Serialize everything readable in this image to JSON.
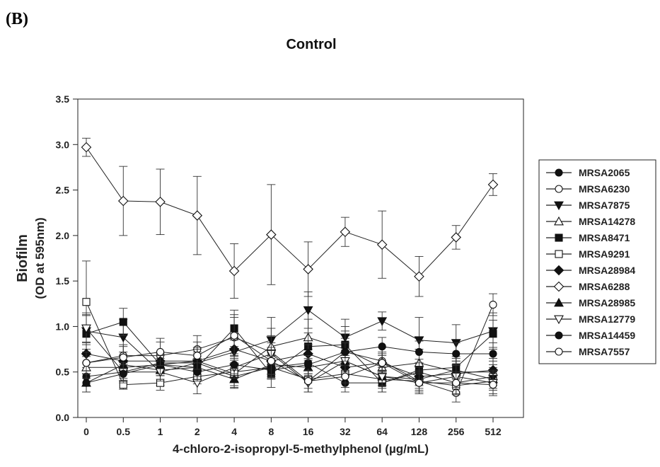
{
  "panel_label": "(B)",
  "chart_data": {
    "type": "line",
    "title": "Control",
    "xlabel": "4-chloro-2-isopropyl-5-methylphenol (µg/mL)",
    "ylabel": "Biofilm",
    "ylabel_sub": "(OD at 595nm)",
    "categories": [
      "0",
      "0.5",
      "1",
      "2",
      "4",
      "8",
      "16",
      "32",
      "64",
      "128",
      "256",
      "512"
    ],
    "ylim": [
      0,
      3.5
    ],
    "yticks": [
      "0.0",
      "0.5",
      "1.0",
      "1.5",
      "2.0",
      "2.5",
      "3.0",
      "3.5"
    ],
    "grid": false,
    "legend_position": "right",
    "series": [
      {
        "name": "MRSA2065",
        "marker": "circle",
        "filled": true,
        "values": [
          0.45,
          0.5,
          0.6,
          0.6,
          0.45,
          0.55,
          0.6,
          0.38,
          0.38,
          0.5,
          0.38,
          0.45
        ],
        "errors": [
          0.1,
          0.1,
          0.1,
          0.1,
          0.1,
          0.12,
          0.15,
          0.1,
          0.1,
          0.1,
          0.1,
          0.1
        ]
      },
      {
        "name": "MRSA6230",
        "marker": "circle",
        "filled": false,
        "values": [
          0.6,
          0.68,
          0.68,
          0.75,
          0.88,
          0.72,
          0.4,
          0.72,
          0.62,
          0.4,
          0.27,
          1.24
        ],
        "errors": [
          0.12,
          0.12,
          0.15,
          0.15,
          0.25,
          0.18,
          0.12,
          0.15,
          0.15,
          0.12,
          0.1,
          0.12
        ]
      },
      {
        "name": "MRSA7875",
        "marker": "triangle-down",
        "filled": true,
        "values": [
          0.95,
          0.88,
          0.5,
          0.6,
          0.72,
          0.85,
          1.18,
          0.88,
          1.06,
          0.85,
          0.82,
          0.95
        ],
        "errors": [
          0.2,
          0.2,
          0.15,
          0.15,
          0.2,
          0.25,
          0.2,
          0.2,
          0.1,
          0.25,
          0.2,
          0.2
        ]
      },
      {
        "name": "MRSA14278",
        "marker": "triangle-up",
        "filled": false,
        "values": [
          0.55,
          0.55,
          0.58,
          0.62,
          0.48,
          0.78,
          0.88,
          0.75,
          0.55,
          0.6,
          0.5,
          0.5
        ],
        "errors": [
          0.12,
          0.12,
          0.12,
          0.15,
          0.15,
          0.2,
          0.2,
          0.2,
          0.15,
          0.15,
          0.15,
          0.15
        ]
      },
      {
        "name": "MRSA8471",
        "marker": "square",
        "filled": true,
        "values": [
          0.92,
          1.05,
          0.58,
          0.55,
          0.98,
          0.48,
          0.78,
          0.8,
          0.38,
          0.52,
          0.55,
          0.92
        ],
        "errors": [
          0.2,
          0.15,
          0.12,
          0.12,
          0.2,
          0.15,
          0.15,
          0.2,
          0.1,
          0.12,
          0.12,
          0.15
        ]
      },
      {
        "name": "MRSA9291",
        "marker": "square",
        "filled": false,
        "values": [
          1.27,
          0.36,
          0.38,
          0.45,
          0.5,
          0.55,
          0.42,
          0.48,
          0.42,
          0.4,
          0.35,
          0.4
        ],
        "errors": [
          0.45,
          0.05,
          0.08,
          0.08,
          0.1,
          0.1,
          0.1,
          0.1,
          0.1,
          0.1,
          0.1,
          0.1
        ]
      },
      {
        "name": "MRSA28984",
        "marker": "diamond",
        "filled": true,
        "values": [
          0.7,
          0.62,
          0.62,
          0.62,
          0.75,
          0.62,
          0.7,
          0.55,
          0.6,
          0.45,
          0.48,
          0.52
        ],
        "errors": [
          0.1,
          0.1,
          0.1,
          0.1,
          0.1,
          0.1,
          0.1,
          0.1,
          0.1,
          0.1,
          0.1,
          0.1
        ]
      },
      {
        "name": "MRSA6288",
        "marker": "diamond",
        "filled": false,
        "values": [
          2.97,
          2.38,
          2.37,
          2.22,
          1.61,
          2.01,
          1.63,
          2.04,
          1.9,
          1.55,
          1.98,
          2.56
        ],
        "errors": [
          0.1,
          0.38,
          0.36,
          0.43,
          0.3,
          0.55,
          0.3,
          0.16,
          0.37,
          0.22,
          0.13,
          0.12
        ]
      },
      {
        "name": "MRSA28985",
        "marker": "triangle-up",
        "filled": true,
        "values": [
          0.38,
          0.58,
          0.52,
          0.55,
          0.42,
          0.58,
          0.55,
          0.62,
          0.45,
          0.42,
          0.52,
          0.42
        ],
        "errors": [
          0.1,
          0.1,
          0.1,
          0.1,
          0.1,
          0.1,
          0.1,
          0.1,
          0.1,
          0.1,
          0.1,
          0.1
        ]
      },
      {
        "name": "MRSA12779",
        "marker": "triangle-down",
        "filled": false,
        "values": [
          0.98,
          0.5,
          0.5,
          0.38,
          0.55,
          0.7,
          0.38,
          0.62,
          0.45,
          0.38,
          0.45,
          0.38
        ],
        "errors": [
          0.15,
          0.1,
          0.1,
          0.12,
          0.12,
          0.12,
          0.1,
          0.12,
          0.1,
          0.1,
          0.12,
          0.12
        ]
      },
      {
        "name": "MRSA14459",
        "marker": "circle",
        "filled": true,
        "values": [
          0.38,
          0.48,
          0.58,
          0.5,
          0.58,
          0.52,
          0.58,
          0.72,
          0.78,
          0.72,
          0.7,
          0.7
        ],
        "errors": [
          0.1,
          0.1,
          0.1,
          0.1,
          0.1,
          0.1,
          0.1,
          0.1,
          0.1,
          0.12,
          0.12,
          0.12
        ]
      },
      {
        "name": "MRSA7557",
        "marker": "circle",
        "filled": false,
        "values": [
          0.6,
          0.66,
          0.72,
          0.68,
          0.9,
          0.62,
          0.4,
          0.45,
          0.6,
          0.38,
          0.38,
          0.36
        ],
        "errors": [
          0.12,
          0.12,
          0.15,
          0.15,
          0.2,
          0.15,
          0.12,
          0.12,
          0.12,
          0.12,
          0.12,
          0.12
        ]
      }
    ]
  }
}
